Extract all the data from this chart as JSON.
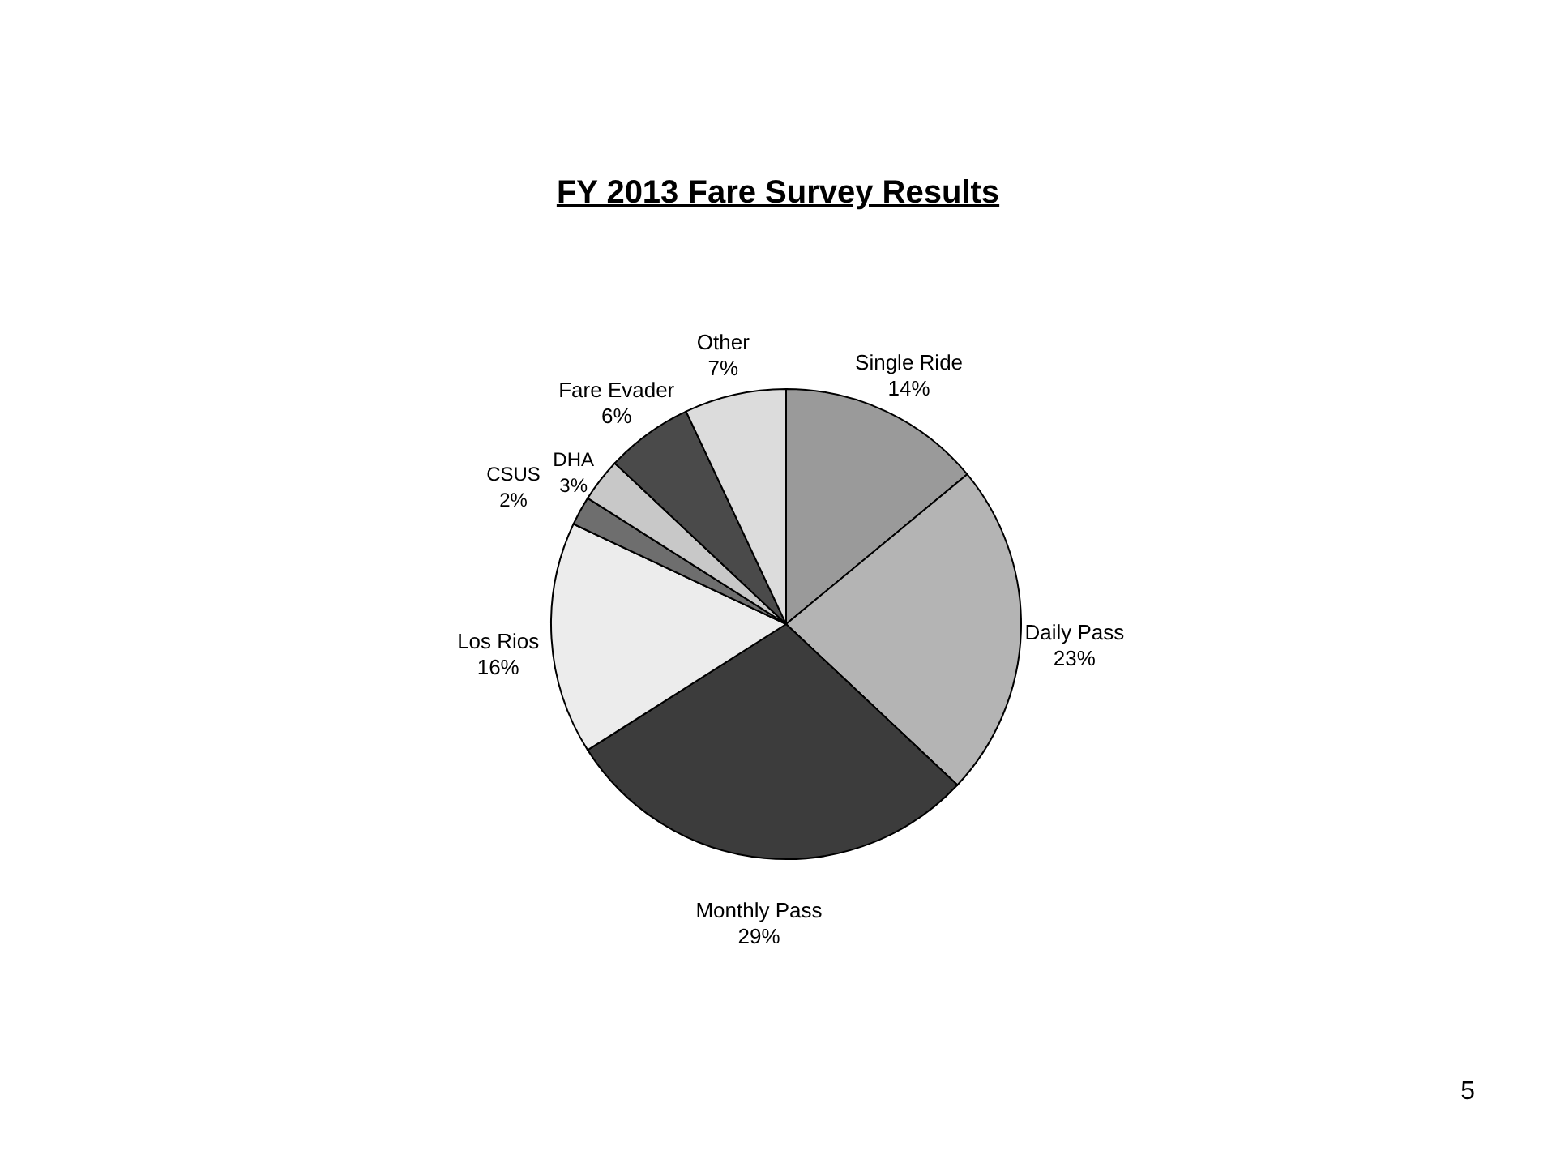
{
  "chart_data": {
    "type": "pie",
    "title": "FY 2013 Fare Survey Results",
    "categories": [
      "Single Ride",
      "Daily Pass",
      "Monthly Pass",
      "Los Rios",
      "CSUS",
      "DHA",
      "Fare Evader",
      "Other"
    ],
    "values": [
      14,
      23,
      29,
      16,
      2,
      3,
      6,
      7
    ],
    "value_labels": [
      "14%",
      "23%",
      "29%",
      "16%",
      "2%",
      "3%",
      "6%",
      "7%"
    ],
    "colors": [
      "#9a9a9a",
      "#b4b4b4",
      "#3c3c3c",
      "#ececec",
      "#6e6e6e",
      "#c8c8c8",
      "#4a4a4a",
      "#dcdcdc"
    ],
    "legend": false,
    "annotations": [
      "5"
    ]
  }
}
